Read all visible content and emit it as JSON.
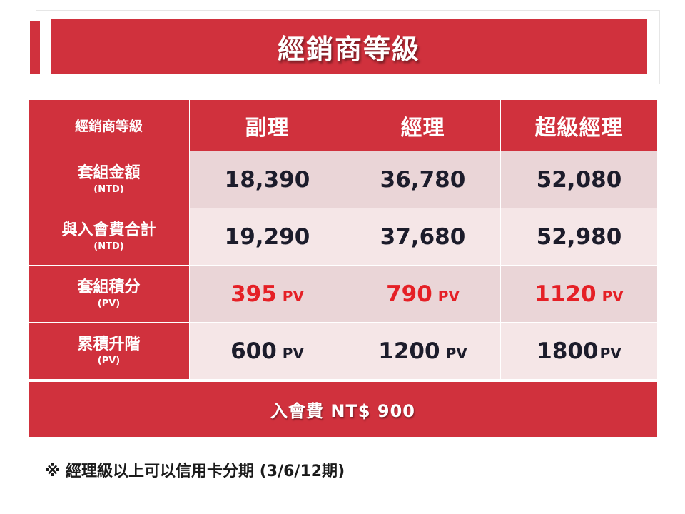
{
  "title": "經銷商等級",
  "colors": {
    "brand_red": "#d0313d",
    "value_red": "#e52026",
    "row_dark": "#ead5d7",
    "row_light": "#f5e6e7"
  },
  "table": {
    "header": {
      "label": "經銷商等級",
      "levels": [
        "副理",
        "經理",
        "超級經理"
      ]
    },
    "rows": [
      {
        "label": "套組金額",
        "sub": "(NTD)",
        "values": [
          "18,390",
          "36,780",
          "52,080"
        ],
        "units": [
          "",
          "",
          ""
        ]
      },
      {
        "label": "與入會費合計",
        "sub": "(NTD)",
        "values": [
          "19,290",
          "37,680",
          "52,980"
        ],
        "units": [
          "",
          "",
          ""
        ]
      },
      {
        "label": "套組積分",
        "sub": "(PV)",
        "values": [
          "395",
          "790",
          "1120"
        ],
        "units": [
          "PV",
          "PV",
          "PV"
        ]
      },
      {
        "label": "累積升階",
        "sub": "(PV)",
        "values": [
          "600",
          "1200",
          "1800"
        ],
        "units": [
          "PV",
          "PV",
          "PV"
        ]
      }
    ]
  },
  "fee": "入會費 NT$ 900",
  "note": "※ 經理級以上可以信用卡分期 (3/6/12期)"
}
